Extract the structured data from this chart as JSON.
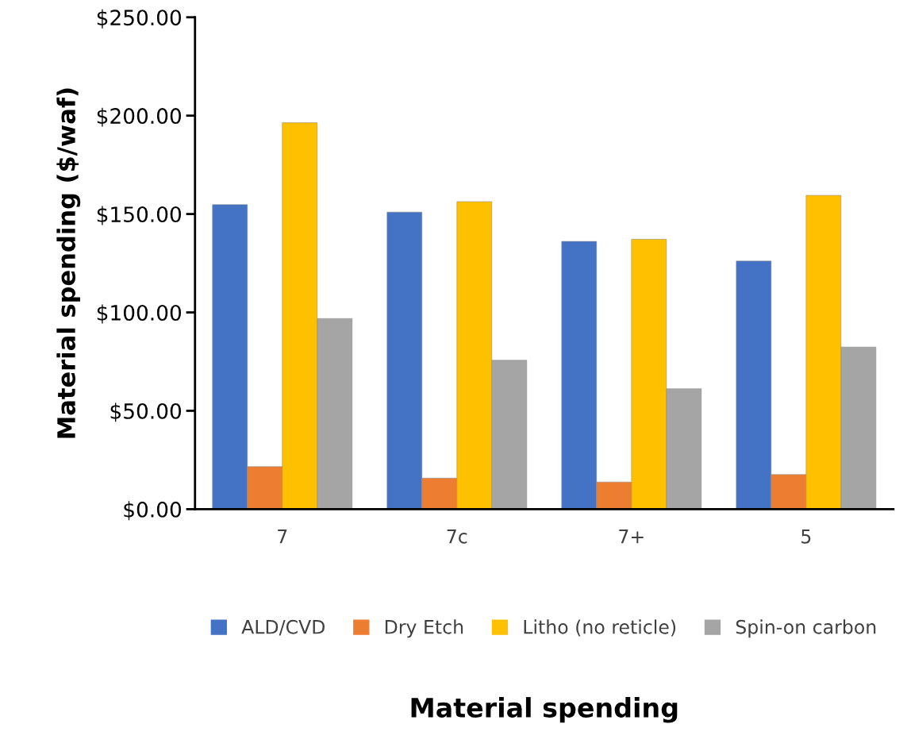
{
  "chart_data": {
    "type": "bar",
    "annotations": [
      "Material spending"
    ],
    "ylabel": "Material spending ($/waf)",
    "categories": [
      "7",
      "7c",
      "7+",
      "5"
    ],
    "series": [
      {
        "name": "ALD/CVD",
        "color": "#4472c4",
        "values": [
          154.8,
          151.0,
          136.1,
          126.1
        ]
      },
      {
        "name": "Dry Etch",
        "color": "#ed7d31",
        "values": [
          21.6,
          15.8,
          13.8,
          17.6
        ]
      },
      {
        "name": "Litho (no reticle)",
        "color": "#ffc000",
        "values": [
          196.4,
          156.3,
          137.2,
          159.5
        ]
      },
      {
        "name": "Spin-on carbon",
        "color": "#a5a5a5",
        "values": [
          96.9,
          75.7,
          61.2,
          82.4
        ]
      }
    ],
    "ylim": [
      0,
      250
    ],
    "yticks": [
      {
        "value": 0,
        "label": "$0.00"
      },
      {
        "value": 50,
        "label": "$50.00"
      },
      {
        "value": 100,
        "label": "$100.00"
      },
      {
        "value": 150,
        "label": "$150.00"
      },
      {
        "value": 200,
        "label": "$200.00"
      },
      {
        "value": 250,
        "label": "$250.00"
      }
    ],
    "grid": false,
    "legend": "bottom"
  }
}
